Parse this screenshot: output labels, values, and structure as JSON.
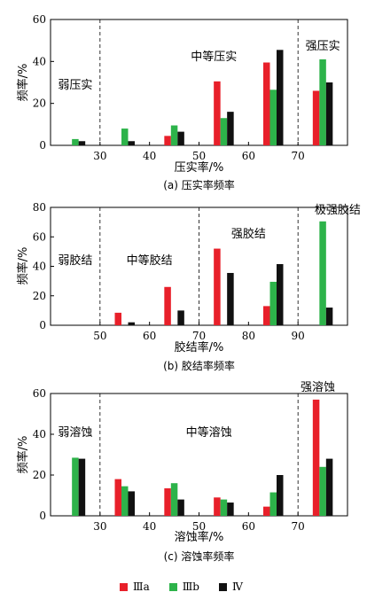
{
  "colors": {
    "IIIa": "#e8202a",
    "IIIb": "#2db34a",
    "IV": "#111111"
  },
  "legend": [
    {
      "key": "IIIa",
      "label": "Ⅲa"
    },
    {
      "key": "IIIb",
      "label": "Ⅲb"
    },
    {
      "key": "IV",
      "label": "Ⅳ"
    }
  ],
  "chart_data": [
    {
      "type": "bar",
      "ylabel": "频率/%",
      "xlabel": "压实率/%",
      "caption": "(a) 压实率频率",
      "ylim": [
        0,
        60
      ],
      "yticks": [
        0,
        20,
        40,
        60
      ],
      "xticks": [
        30,
        40,
        50,
        60,
        70
      ],
      "thresholds": [
        30,
        70
      ],
      "regions": [
        {
          "label": "弱压实",
          "x": 25
        },
        {
          "label": "中等压实",
          "x": 53
        },
        {
          "label": "强压实",
          "x": 75
        }
      ],
      "categories": [
        "25",
        "35",
        "45",
        "55",
        "65",
        "75"
      ],
      "series": [
        {
          "name": "Ⅲa",
          "key": "IIIa",
          "values": [
            0,
            0,
            4.5,
            30.5,
            39.5,
            26
          ]
        },
        {
          "name": "Ⅲb",
          "key": "IIIb",
          "values": [
            3,
            8,
            9.5,
            13,
            26.5,
            41
          ]
        },
        {
          "name": "Ⅳ",
          "key": "IV",
          "values": [
            2,
            2,
            6.5,
            16,
            45.5,
            30
          ]
        }
      ]
    },
    {
      "type": "bar",
      "ylabel": "频率/%",
      "xlabel": "胶结率/%",
      "caption": "(b) 胶结率频率",
      "ylim": [
        0,
        80
      ],
      "yticks": [
        0,
        20,
        40,
        60,
        80
      ],
      "xticks": [
        50,
        60,
        70,
        80,
        90
      ],
      "thresholds": [
        50,
        70,
        90
      ],
      "regions": [
        {
          "label": "弱胶结",
          "x": 45
        },
        {
          "label": "中等胶结",
          "x": 60
        },
        {
          "label": "强胶结",
          "x": 80
        },
        {
          "label": "极强胶结",
          "x": 98
        }
      ],
      "categories": [
        "55",
        "65",
        "75",
        "85",
        "95"
      ],
      "series": [
        {
          "name": "Ⅲa",
          "key": "IIIa",
          "values": [
            8.5,
            26,
            52,
            13,
            0
          ]
        },
        {
          "name": "Ⅲb",
          "key": "IIIb",
          "values": [
            0,
            0,
            0,
            29.5,
            70.5
          ]
        },
        {
          "name": "Ⅳ",
          "key": "IV",
          "values": [
            2,
            10,
            35.5,
            41.5,
            12
          ]
        }
      ]
    },
    {
      "type": "bar",
      "ylabel": "频率/%",
      "xlabel": "溶蚀率/%",
      "caption": "(c) 溶蚀率频率",
      "ylim": [
        0,
        60
      ],
      "yticks": [
        0,
        20,
        40,
        60
      ],
      "xticks": [
        30,
        40,
        50,
        60,
        70
      ],
      "thresholds": [
        30,
        70
      ],
      "regions": [
        {
          "label": "弱溶蚀",
          "x": 25
        },
        {
          "label": "中等溶蚀",
          "x": 52
        },
        {
          "label": "强溶蚀",
          "x": 74
        }
      ],
      "categories": [
        "25",
        "35",
        "45",
        "55",
        "65",
        "75"
      ],
      "series": [
        {
          "name": "Ⅲa",
          "key": "IIIa",
          "values": [
            0,
            18,
            13.5,
            9,
            4.5,
            57
          ]
        },
        {
          "name": "Ⅲb",
          "key": "IIIb",
          "values": [
            28.5,
            14.5,
            16,
            8,
            11.5,
            24
          ]
        },
        {
          "name": "Ⅳ",
          "key": "IV",
          "values": [
            28,
            12,
            8,
            6.5,
            20,
            28
          ]
        }
      ]
    }
  ]
}
